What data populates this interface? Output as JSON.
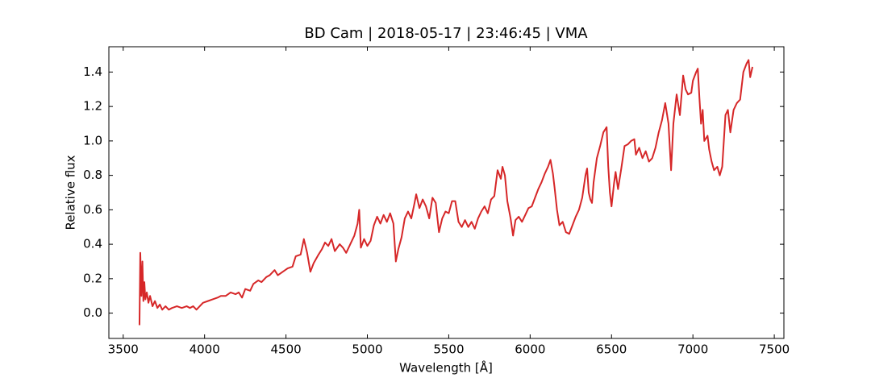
{
  "chart_data": {
    "type": "line",
    "title": "BD Cam | 2018-05-17 | 23:46:45 | VMA",
    "xlabel": "Wavelength [Å]",
    "ylabel": "Relative flux",
    "color": "#d62728",
    "xlim": [
      3412,
      7559
    ],
    "ylim": [
      -0.147,
      1.547
    ],
    "xticks": [
      3500,
      4000,
      4500,
      5000,
      5500,
      6000,
      6500,
      7000,
      7500
    ],
    "yticks": [
      {
        "value": 0,
        "label": "0.0"
      },
      0.2,
      0.4,
      0.6,
      0.8,
      {
        "value": 1,
        "label": "1.0"
      },
      1.2,
      1.4
    ],
    "x": [
      3600,
      3605,
      3612,
      3618,
      3624,
      3630,
      3636,
      3645,
      3655,
      3665,
      3680,
      3695,
      3710,
      3725,
      3740,
      3760,
      3780,
      3800,
      3830,
      3860,
      3890,
      3910,
      3930,
      3950,
      3970,
      3990,
      4020,
      4050,
      4080,
      4100,
      4130,
      4160,
      4190,
      4210,
      4230,
      4250,
      4280,
      4300,
      4330,
      4350,
      4380,
      4400,
      4430,
      4450,
      4480,
      4510,
      4540,
      4560,
      4590,
      4610,
      4630,
      4650,
      4670,
      4700,
      4720,
      4740,
      4760,
      4780,
      4800,
      4830,
      4850,
      4870,
      4900,
      4920,
      4940,
      4950,
      4960,
      4980,
      5000,
      5020,
      5040,
      5060,
      5080,
      5100,
      5120,
      5140,
      5160,
      5175,
      5190,
      5210,
      5230,
      5250,
      5270,
      5290,
      5300,
      5320,
      5340,
      5360,
      5380,
      5400,
      5420,
      5440,
      5460,
      5480,
      5500,
      5520,
      5540,
      5560,
      5580,
      5600,
      5620,
      5640,
      5660,
      5680,
      5700,
      5720,
      5740,
      5760,
      5780,
      5800,
      5820,
      5830,
      5845,
      5860,
      5880,
      5895,
      5910,
      5930,
      5950,
      5970,
      5990,
      6010,
      6030,
      6050,
      6070,
      6090,
      6110,
      6125,
      6140,
      6150,
      6165,
      6180,
      6200,
      6220,
      6240,
      6260,
      6280,
      6300,
      6320,
      6340,
      6350,
      6360,
      6370,
      6380,
      6390,
      6410,
      6430,
      6450,
      6470,
      6480,
      6490,
      6500,
      6515,
      6525,
      6540,
      6560,
      6580,
      6600,
      6620,
      6640,
      6650,
      6670,
      6690,
      6710,
      6730,
      6750,
      6770,
      6790,
      6810,
      6830,
      6850,
      6866,
      6880,
      6900,
      6920,
      6940,
      6955,
      6970,
      6990,
      7000,
      7020,
      7030,
      7040,
      7050,
      7060,
      7070,
      7090,
      7100,
      7115,
      7130,
      7150,
      7165,
      7180,
      7200,
      7215,
      7230,
      7250,
      7270,
      7290,
      7310,
      7330,
      7342,
      7352,
      7366
    ],
    "values": [
      -0.07,
      0.35,
      0.1,
      0.3,
      0.07,
      0.18,
      0.08,
      0.12,
      0.06,
      0.1,
      0.04,
      0.07,
      0.03,
      0.05,
      0.02,
      0.04,
      0.02,
      0.03,
      0.04,
      0.03,
      0.04,
      0.03,
      0.04,
      0.02,
      0.04,
      0.06,
      0.07,
      0.08,
      0.09,
      0.1,
      0.1,
      0.12,
      0.11,
      0.12,
      0.09,
      0.14,
      0.13,
      0.17,
      0.19,
      0.18,
      0.21,
      0.22,
      0.25,
      0.22,
      0.24,
      0.26,
      0.27,
      0.33,
      0.34,
      0.43,
      0.35,
      0.24,
      0.29,
      0.34,
      0.37,
      0.41,
      0.39,
      0.43,
      0.36,
      0.4,
      0.38,
      0.35,
      0.41,
      0.45,
      0.52,
      0.6,
      0.38,
      0.43,
      0.39,
      0.42,
      0.51,
      0.56,
      0.52,
      0.57,
      0.53,
      0.58,
      0.52,
      0.3,
      0.37,
      0.44,
      0.55,
      0.59,
      0.55,
      0.64,
      0.69,
      0.61,
      0.66,
      0.62,
      0.55,
      0.67,
      0.64,
      0.47,
      0.55,
      0.59,
      0.58,
      0.65,
      0.65,
      0.53,
      0.5,
      0.54,
      0.5,
      0.53,
      0.49,
      0.55,
      0.59,
      0.62,
      0.58,
      0.66,
      0.68,
      0.83,
      0.78,
      0.85,
      0.8,
      0.65,
      0.55,
      0.45,
      0.54,
      0.56,
      0.53,
      0.57,
      0.61,
      0.62,
      0.67,
      0.72,
      0.76,
      0.81,
      0.85,
      0.89,
      0.81,
      0.73,
      0.6,
      0.51,
      0.53,
      0.47,
      0.46,
      0.51,
      0.56,
      0.6,
      0.67,
      0.8,
      0.84,
      0.7,
      0.66,
      0.64,
      0.76,
      0.9,
      0.97,
      1.05,
      1.08,
      0.85,
      0.7,
      0.62,
      0.75,
      0.82,
      0.72,
      0.84,
      0.97,
      0.98,
      1.0,
      1.01,
      0.92,
      0.96,
      0.9,
      0.94,
      0.88,
      0.9,
      0.96,
      1.05,
      1.12,
      1.22,
      1.1,
      0.83,
      1.1,
      1.27,
      1.15,
      1.38,
      1.3,
      1.27,
      1.28,
      1.35,
      1.4,
      1.42,
      1.25,
      1.1,
      1.18,
      1.0,
      1.03,
      0.95,
      0.88,
      0.83,
      0.85,
      0.8,
      0.85,
      1.15,
      1.18,
      1.05,
      1.18,
      1.22,
      1.24,
      1.4,
      1.45,
      1.47,
      1.37,
      1.43
    ]
  }
}
